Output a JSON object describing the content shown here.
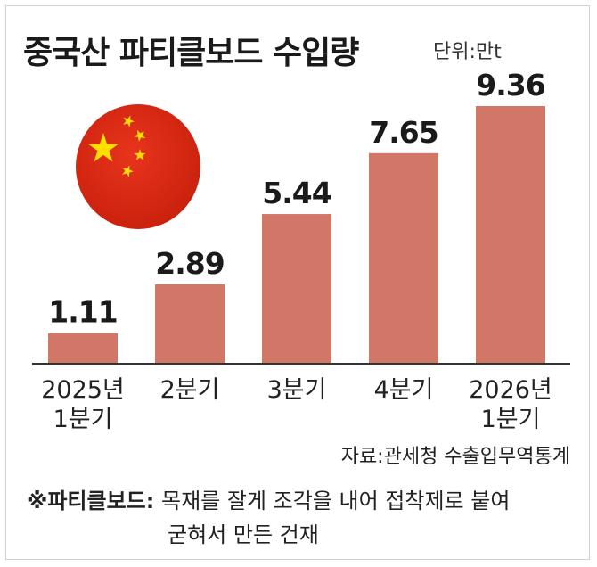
{
  "header": {
    "title": "중국산 파티클보드 수입량",
    "unit": "단위:만t"
  },
  "chart_data": {
    "type": "bar",
    "categories": [
      [
        "2025년",
        "1분기"
      ],
      [
        "2분기"
      ],
      [
        "3분기"
      ],
      [
        "4분기"
      ],
      [
        "2026년",
        "1분기"
      ]
    ],
    "values": [
      1.11,
      2.89,
      5.44,
      7.65,
      9.36
    ],
    "value_labels": [
      "1.11",
      "2.89",
      "5.44",
      "7.65",
      "9.36"
    ],
    "title": "중국산 파티클보드 수입량",
    "unit": "단위:만t",
    "ylim": [
      0,
      10
    ],
    "grid": false,
    "bar_color": "#d27767"
  },
  "footer": {
    "source": "자료:관세청 수출입무역통계",
    "note_mark": "※",
    "note_term": "파티클보드:",
    "note_line1": "목재를 잘게 조각을 내어 접착제로 붙여",
    "note_line2": "굳혀서 만든 건재"
  },
  "flag": {
    "icon": "china-flag-icon",
    "red": "#de2910",
    "yellow": "#ffde00"
  }
}
